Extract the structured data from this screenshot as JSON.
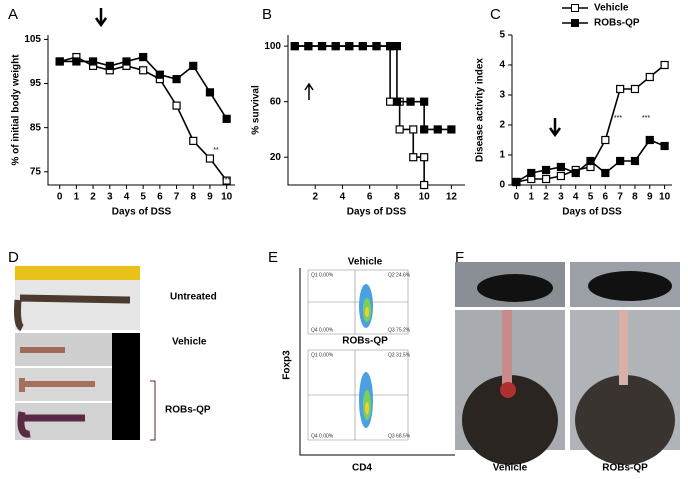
{
  "chart_data": [
    {
      "type": "line",
      "panel": "A",
      "ylabel": "% of initial body weight",
      "xlabel": "Days of DSS",
      "x": [
        0,
        1,
        2,
        3,
        4,
        5,
        6,
        7,
        8,
        9,
        10
      ],
      "xlim": [
        -0.7,
        10.5
      ],
      "xticks": [
        0,
        1,
        2,
        3,
        4,
        5,
        6,
        7,
        8,
        9,
        10
      ],
      "ylim": [
        72,
        106
      ],
      "yticks": [
        75,
        85,
        95,
        105
      ],
      "series": [
        {
          "name": "Vehicle",
          "color": "#000",
          "filled": false,
          "values": [
            100,
            101,
            99,
            98,
            99,
            98,
            96,
            90,
            82,
            78,
            73
          ]
        },
        {
          "name": "ROBs-QP",
          "color": "#000",
          "filled": true,
          "values": [
            100,
            100,
            100,
            99,
            100,
            101,
            97,
            96,
            99,
            93,
            87
          ]
        }
      ],
      "annotations": [
        "**",
        "***"
      ]
    },
    {
      "type": "line",
      "panel": "B",
      "ylabel": "% survival",
      "xlabel": "Days of DSS",
      "xlim": [
        0,
        13
      ],
      "xticks": [
        2,
        4,
        6,
        8,
        10,
        12
      ],
      "ylim": [
        0,
        108
      ],
      "yticks": [
        20,
        60,
        100
      ],
      "series": [
        {
          "name": "Vehicle",
          "color": "#000",
          "filled": false,
          "x": [
            0.5,
            1.5,
            2.5,
            3.5,
            4.5,
            5.5,
            6.5,
            7.5,
            7.5,
            8.2,
            8.2,
            9.2,
            9.2,
            10,
            10
          ],
          "values": [
            100,
            100,
            100,
            100,
            100,
            100,
            100,
            100,
            60,
            60,
            40,
            40,
            20,
            20,
            0
          ]
        },
        {
          "name": "ROBs-QP",
          "color": "#000",
          "filled": true,
          "x": [
            0.5,
            1.5,
            2.5,
            3.5,
            4.5,
            5.5,
            6.5,
            7.5,
            8,
            8,
            9,
            10,
            10,
            11,
            12
          ],
          "values": [
            100,
            100,
            100,
            100,
            100,
            100,
            100,
            100,
            100,
            60,
            60,
            60,
            40,
            40,
            40
          ]
        }
      ]
    },
    {
      "type": "line",
      "panel": "C",
      "ylabel": "Disease activity index",
      "xlabel": "Days of DSS",
      "x": [
        0,
        1,
        2,
        3,
        4,
        5,
        6,
        7,
        8,
        9,
        10
      ],
      "xlim": [
        -0.3,
        10.5
      ],
      "xticks": [
        0,
        1,
        2,
        3,
        4,
        5,
        6,
        7,
        8,
        9,
        10
      ],
      "ylim": [
        0,
        5
      ],
      "yticks": [
        0,
        1,
        2,
        3,
        4,
        5
      ],
      "legend": "top-right",
      "series": [
        {
          "name": "Vehicle",
          "color": "#000",
          "filled": false,
          "values": [
            0.1,
            0.2,
            0.2,
            0.3,
            0.5,
            0.6,
            1.5,
            3.2,
            3.2,
            3.6,
            4.0
          ]
        },
        {
          "name": "ROBs-QP",
          "color": "#000",
          "filled": true,
          "values": [
            0.1,
            0.4,
            0.5,
            0.6,
            0.4,
            0.8,
            0.4,
            0.8,
            0.8,
            1.5,
            1.3
          ]
        }
      ],
      "annotations": [
        "***",
        "***"
      ]
    }
  ],
  "panels": {
    "D": {
      "letter": "D",
      "labels": [
        "Untreated",
        "Vehicle",
        "ROBs-QP"
      ]
    },
    "E": {
      "letter": "E",
      "top": "Vehicle",
      "bottom": "ROBs-QP",
      "ylabel": "Foxp3",
      "xlabel": "CD4",
      "top_quadrants": [
        "Q1 0.00%",
        "Q2 24.6%",
        "Q3 75.2%",
        "Q4 0.00%"
      ],
      "bottom_quadrants": [
        "Q1 0.00%",
        "Q2 31.5%",
        "Q3 68.5%",
        "Q4 0.00%"
      ]
    },
    "F": {
      "letter": "F",
      "labels": [
        "Vehicle",
        "ROBs-QP"
      ]
    }
  }
}
